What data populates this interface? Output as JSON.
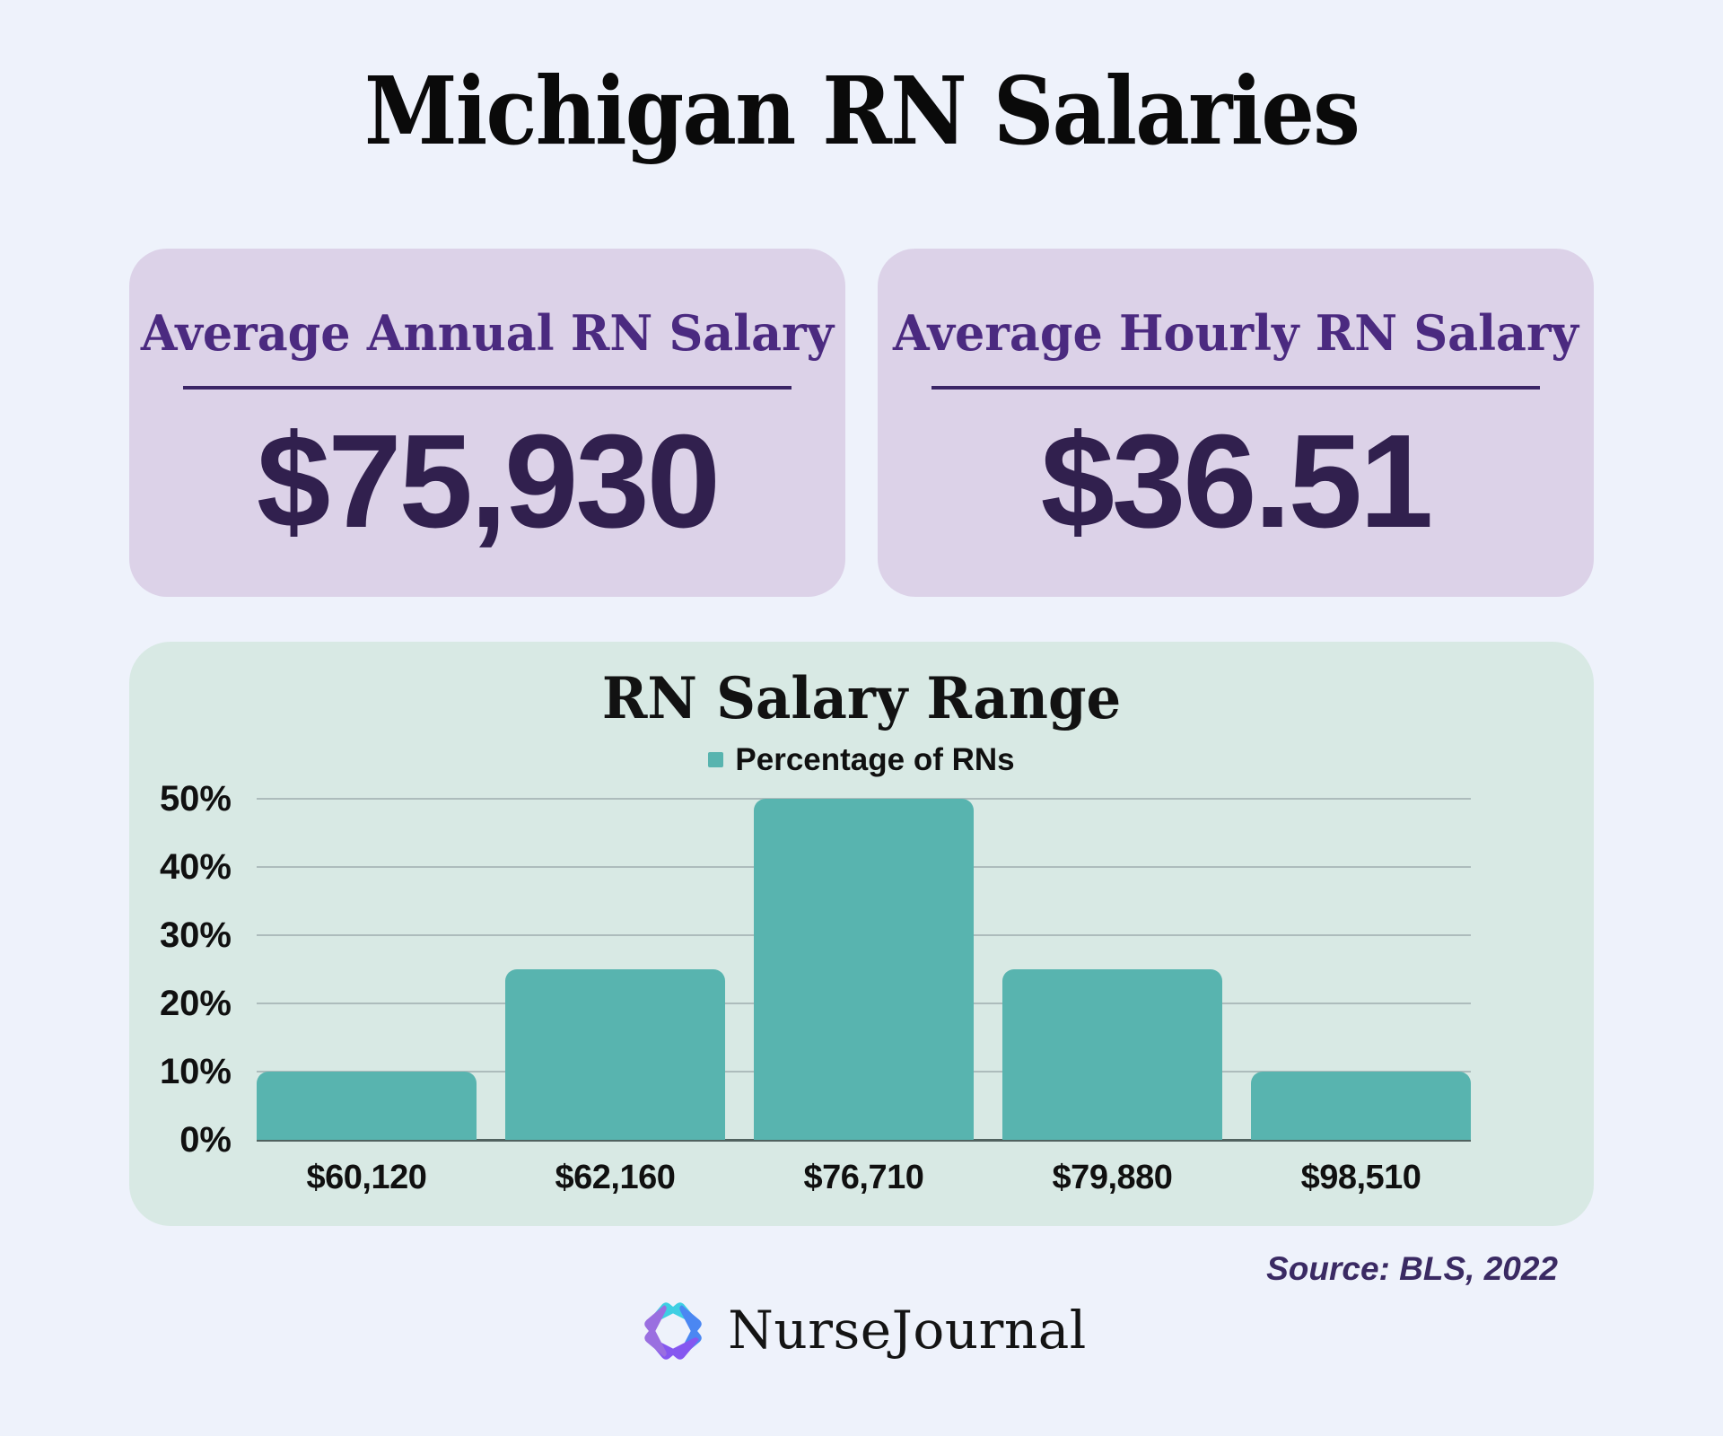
{
  "page": {
    "title": "Michigan RN Salaries"
  },
  "stat_cards": [
    {
      "label": "Average Annual RN Salary",
      "value": "$75,930"
    },
    {
      "label": "Average Hourly RN Salary",
      "value": "$36.51"
    }
  ],
  "chart_data": {
    "type": "bar",
    "title": "RN Salary Range",
    "legend": "Percentage of RNs",
    "legend_position": "top",
    "categories": [
      "$60,120",
      "$62,160",
      "$76,710",
      "$79,880",
      "$98,510"
    ],
    "values": [
      10,
      25,
      50,
      25,
      10
    ],
    "unit": "%",
    "xlabel": "",
    "ylabel": "",
    "ylim": [
      0,
      50
    ],
    "ytick_step": 10,
    "grid": true,
    "bar_color": "#58b4af"
  },
  "source": {
    "text": "Source: BLS, 2022"
  },
  "logo": {
    "text": "NurseJournal"
  },
  "colors": {
    "background": "#eef2fb",
    "card_background": "#dcd2e8",
    "card_heading": "#4b2a80",
    "card_value": "#31204e",
    "chart_background": "#d8e9e4",
    "bar_teal": "#58b4af",
    "source_text": "#3a2a63",
    "logo_cyan": "#3ecfe3",
    "logo_blue": "#4b87f2",
    "logo_violet": "#8557f0",
    "logo_purple": "#9a6fe0"
  }
}
